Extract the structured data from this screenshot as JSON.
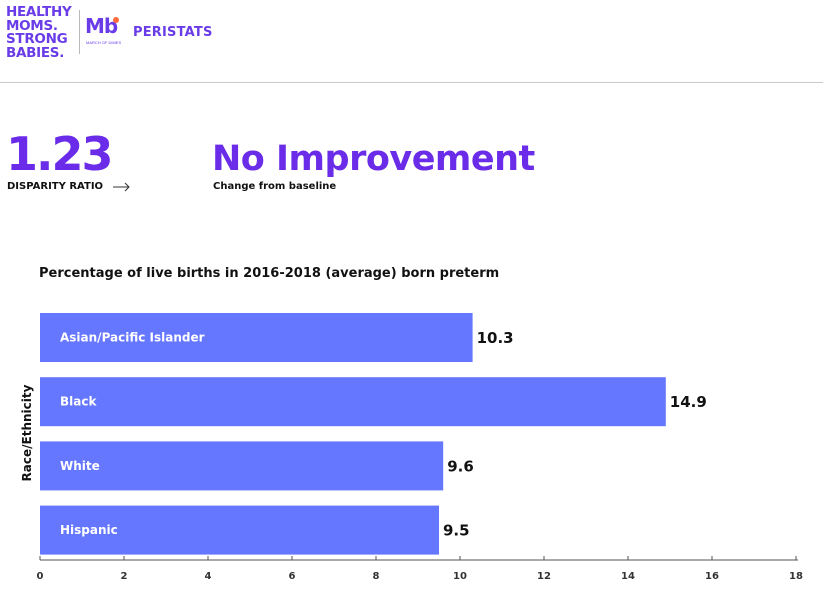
{
  "header": {
    "logo_lines": [
      "HEALTHY",
      "MOMS.",
      "STRONG",
      "BABIES."
    ],
    "mark_letters": "Mb",
    "mark_caption": "MARCH OF DIMES",
    "brand": "PERISTATS"
  },
  "metric": {
    "value": "1.23",
    "label": "DISPARITY RATIO",
    "arrow_icon": "arrow-right-icon"
  },
  "status": {
    "value": "No Improvement",
    "subtitle": "Change from baseline"
  },
  "colors": {
    "accent": "#6a2ce8",
    "bar": "#6677ff",
    "mark_dot": "#ff6a3d"
  },
  "chart_data": {
    "type": "bar",
    "orientation": "horizontal",
    "title": "Percentage of live births in 2016-2018 (average) born preterm",
    "ylabel": "Race/Ethnicity",
    "xlabel": "",
    "categories": [
      "Asian/Pacific Islander",
      "Black",
      "White",
      "Hispanic"
    ],
    "values": [
      10.3,
      14.9,
      9.6,
      9.5
    ],
    "value_labels": [
      "10.3",
      "14.9",
      "9.6",
      "9.5"
    ],
    "xlim": [
      0,
      18
    ],
    "xticks": [
      0,
      2,
      4,
      6,
      8,
      10,
      12,
      14,
      16,
      18
    ],
    "xtick_labels": [
      "0",
      "2",
      "4",
      "6",
      "8",
      "10",
      "12",
      "14",
      "16",
      "18"
    ],
    "grid": false
  }
}
